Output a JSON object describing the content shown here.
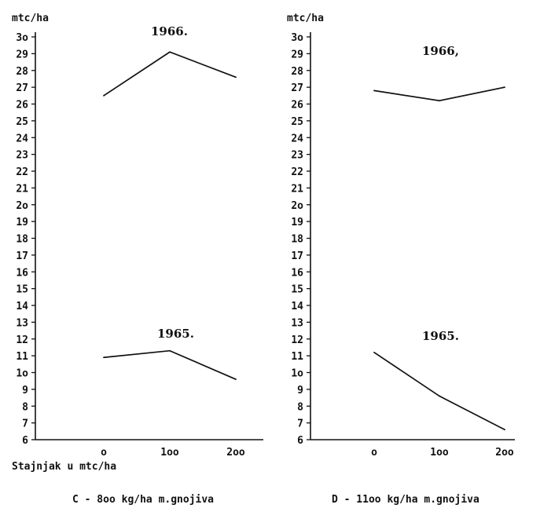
{
  "chart_data": [
    {
      "type": "line",
      "ylabel": "mtc/ha",
      "xlabel": "Stajnjak u mtc/ha",
      "caption": "C - 8oo kg/ha m.gnojiva",
      "x": [
        0,
        100,
        200
      ],
      "xticklabels": [
        "o",
        "1oo",
        "2oo"
      ],
      "ylim": [
        6,
        30
      ],
      "yticklabels": [
        "6",
        "7",
        "8",
        "9",
        "1o",
        "11",
        "12",
        "13",
        "14",
        "15",
        "16",
        "17",
        "18",
        "19",
        "2o",
        "21",
        "22",
        "23",
        "24",
        "25",
        "26",
        "27",
        "28",
        "29",
        "3o"
      ],
      "series": [
        {
          "name": "1966.",
          "values": [
            26.5,
            29.1,
            27.6
          ]
        },
        {
          "name": "1965.",
          "values": [
            10.9,
            11.3,
            9.6
          ]
        }
      ]
    },
    {
      "type": "line",
      "ylabel": "mtc/ha",
      "xlabel": "",
      "caption": "D - 11oo kg/ha m.gnojiva",
      "x": [
        0,
        100,
        200
      ],
      "xticklabels": [
        "o",
        "1oo",
        "2oo"
      ],
      "ylim": [
        6,
        30
      ],
      "yticklabels": [
        "6",
        "7",
        "8",
        "9",
        "1o",
        "11",
        "12",
        "13",
        "14",
        "15",
        "16",
        "17",
        "18",
        "19",
        "2o",
        "21",
        "22",
        "23",
        "24",
        "25",
        "26",
        "27",
        "28",
        "29",
        "3o"
      ],
      "series": [
        {
          "name": "1966,",
          "values": [
            26.8,
            26.2,
            27.0
          ]
        },
        {
          "name": "1965.",
          "values": [
            11.2,
            8.6,
            6.6
          ]
        }
      ]
    }
  ]
}
